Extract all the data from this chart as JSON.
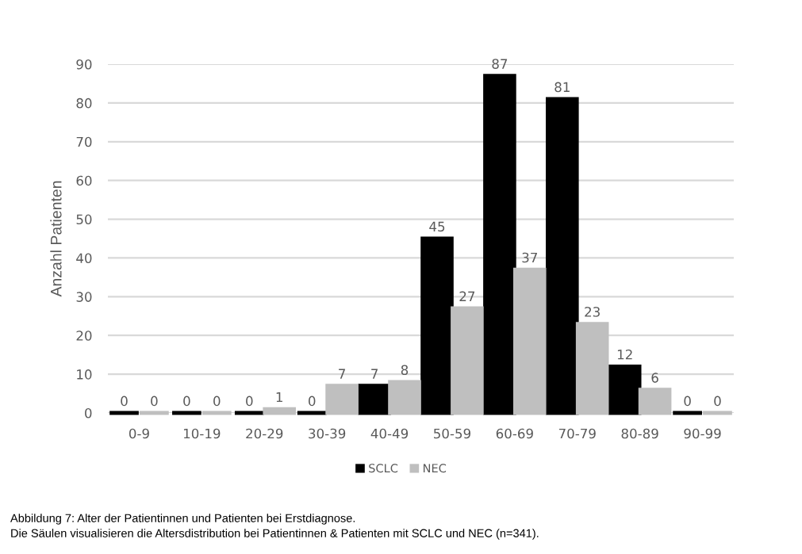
{
  "chart_data": {
    "type": "bar",
    "ylabel": "Anzahl Patienten",
    "categories": [
      "0-9",
      "10-19",
      "20-29",
      "30-39",
      "40-49",
      "50-59",
      "60-69",
      "70-79",
      "80-89",
      "90-99"
    ],
    "series": [
      {
        "name": "SCLC",
        "color": "#000000",
        "values": [
          0,
          0,
          0,
          0,
          7,
          45,
          87,
          81,
          12,
          0
        ]
      },
      {
        "name": "NEC",
        "color": "#bfbfbf",
        "values": [
          0,
          0,
          1,
          7,
          8,
          27,
          37,
          23,
          6,
          0
        ]
      }
    ],
    "ylim": [
      0,
      90
    ],
    "yticks": [
      0,
      10,
      20,
      30,
      40,
      50,
      60,
      70,
      80,
      90
    ],
    "grid": "y",
    "legend": "bottom",
    "data_labels": true,
    "annotations": [
      "Abbildung 7: Alter der Patientinnen und Patienten bei Erstdiagnose.",
      "Die Säulen visualisieren die Altersdistribution bei Patientinnen & Patienten mit SCLC und NEC (n=341)."
    ]
  }
}
